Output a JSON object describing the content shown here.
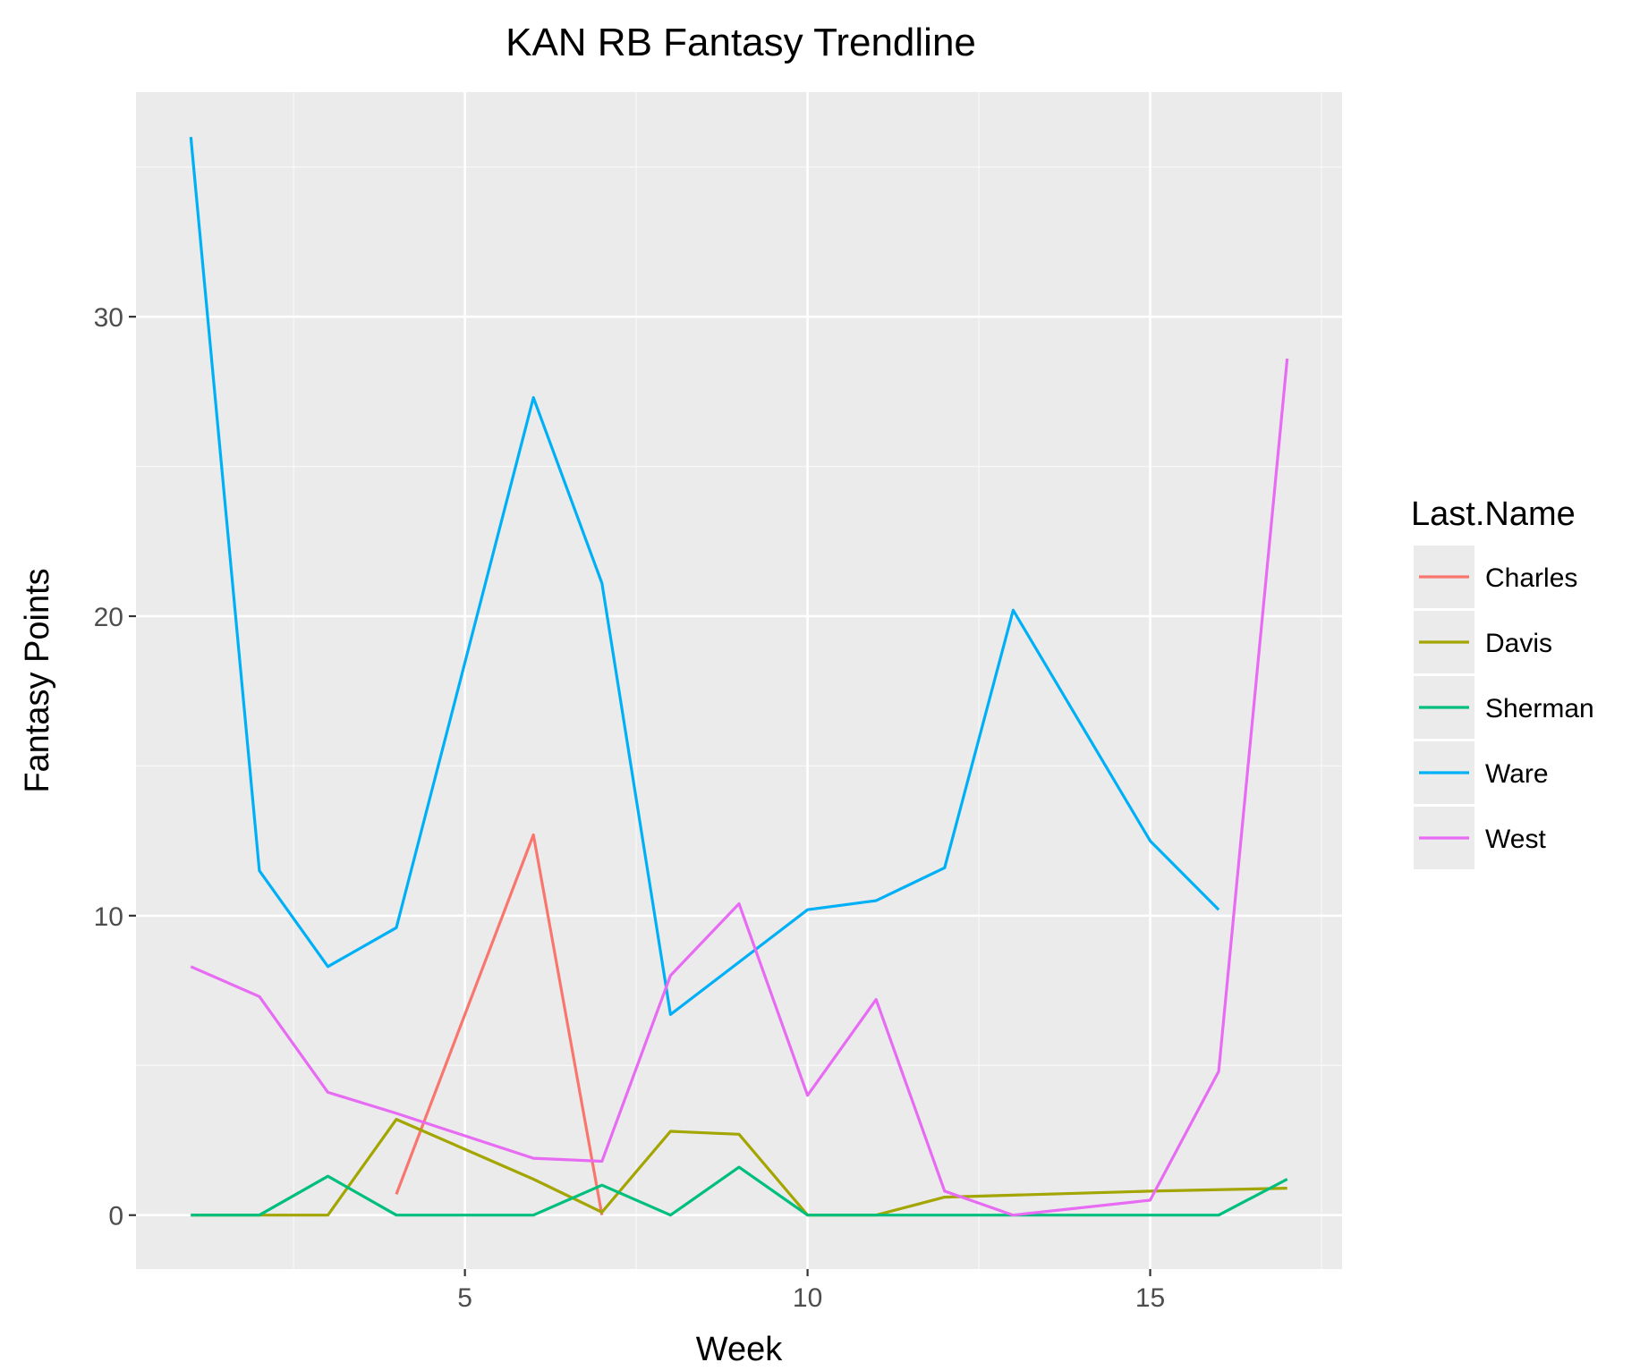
{
  "chart_data": {
    "type": "line",
    "title": "KAN RB Fantasy Trendline",
    "xlabel": "Week",
    "ylabel": "Fantasy Points",
    "xlim": [
      0.2,
      17.8
    ],
    "ylim": [
      -1.8,
      37.5
    ],
    "x_ticks": [
      5,
      10,
      15
    ],
    "y_ticks": [
      0,
      10,
      20,
      30
    ],
    "x_minor": [
      2.5,
      7.5,
      12.5,
      17.5
    ],
    "y_minor": [
      5,
      15,
      25,
      35
    ],
    "grid": true,
    "legend": {
      "title": "Last.Name",
      "position": "right"
    },
    "series": [
      {
        "name": "Charles",
        "color": "#F8766D",
        "x": [
          4,
          6,
          7
        ],
        "y": [
          0.7,
          12.7,
          0
        ]
      },
      {
        "name": "Davis",
        "color": "#A3A500",
        "x": [
          1,
          2,
          3,
          4,
          6,
          7,
          8,
          9,
          10,
          11,
          12,
          15,
          17
        ],
        "y": [
          0,
          0,
          0,
          3.2,
          1.2,
          0.1,
          2.8,
          2.7,
          0,
          0,
          0.6,
          0.8,
          0.9
        ]
      },
      {
        "name": "Sherman",
        "color": "#00BF7D",
        "x": [
          1,
          2,
          3,
          4,
          6,
          7,
          8,
          9,
          10,
          11,
          12,
          13,
          15,
          16,
          17
        ],
        "y": [
          0,
          0,
          1.3,
          0,
          0,
          1.0,
          0,
          1.6,
          0,
          0,
          0,
          0,
          0,
          0,
          1.2
        ]
      },
      {
        "name": "Ware",
        "color": "#00B0F6",
        "x": [
          1,
          2,
          3,
          4,
          6,
          7,
          8,
          10,
          11,
          12,
          13,
          15,
          16
        ],
        "y": [
          36.0,
          11.5,
          8.3,
          9.6,
          27.3,
          21.1,
          6.7,
          10.2,
          10.5,
          11.6,
          20.2,
          12.5,
          10.2
        ]
      },
      {
        "name": "West",
        "color": "#E76BF3",
        "x": [
          1,
          2,
          3,
          4,
          6,
          7,
          8,
          9,
          10,
          11,
          12,
          13,
          15,
          16,
          17
        ],
        "y": [
          8.3,
          7.3,
          4.1,
          3.4,
          1.9,
          1.8,
          8.0,
          10.4,
          4.0,
          7.2,
          0.8,
          0,
          0.5,
          4.8,
          28.6
        ]
      }
    ]
  }
}
